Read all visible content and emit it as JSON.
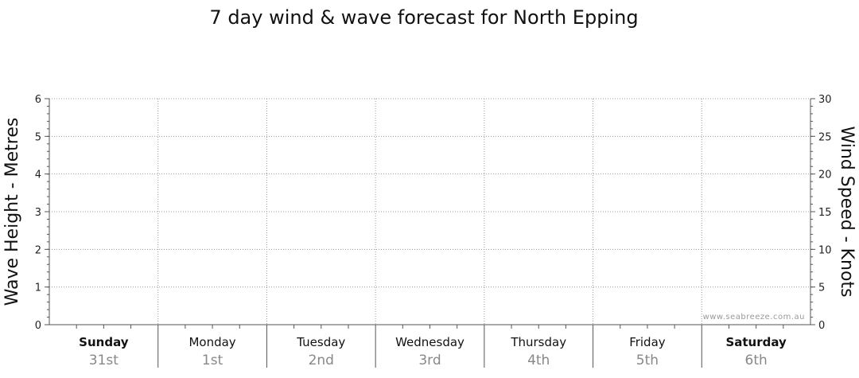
{
  "chart_data": {
    "type": "line",
    "title": "7 day wind & wave forecast for North Epping",
    "ylabel_left": "Wave Height - Metres",
    "ylabel_right": "Wind Speed - Knots",
    "ylim_left": [
      0,
      6
    ],
    "ylim_right": [
      0,
      30
    ],
    "yticks_left": [
      "0",
      "1",
      "2",
      "3",
      "4",
      "5",
      "6"
    ],
    "yticks_right": [
      "0",
      "5",
      "10",
      "15",
      "20",
      "25",
      "30"
    ],
    "days": [
      {
        "name": "Sunday",
        "date": "31st",
        "weekend": true
      },
      {
        "name": "Monday",
        "date": "1st",
        "weekend": false
      },
      {
        "name": "Tuesday",
        "date": "2nd",
        "weekend": false
      },
      {
        "name": "Wednesday",
        "date": "3rd",
        "weekend": false
      },
      {
        "name": "Thursday",
        "date": "4th",
        "weekend": false
      },
      {
        "name": "Friday",
        "date": "5th",
        "weekend": false
      },
      {
        "name": "Saturday",
        "date": "6th",
        "weekend": true
      }
    ],
    "series": [],
    "grid": true,
    "watermark": "www.seabreeze.com.au"
  }
}
